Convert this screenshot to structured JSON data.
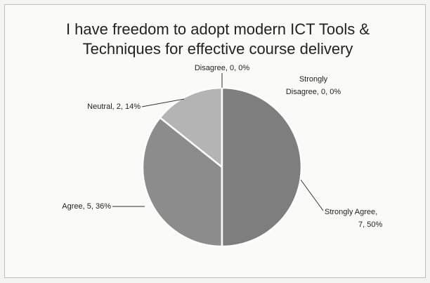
{
  "chart_data": {
    "type": "pie",
    "title": "I have freedom to adopt modern ICT Tools & Techniques for effective course delivery",
    "categories": [
      "Strongly Disagree",
      "Disagree",
      "Neutral",
      "Agree",
      "Strongly Agree"
    ],
    "values": [
      0,
      0,
      2,
      5,
      7
    ],
    "value_labels": [
      [
        "Strongly",
        "Disagree, 0, 0%"
      ],
      [
        "Disagree, 0, 0%"
      ],
      [
        "Neutral, 2, 14%"
      ],
      [
        "Agree, 5, 36%"
      ],
      [
        "Strongly Agree,",
        "7, 50%"
      ]
    ],
    "colors": [
      "#9a9a9a",
      "#9a9a9a",
      "#b4b4b4",
      "#8c8c8c",
      "#7e7e7e"
    ]
  }
}
